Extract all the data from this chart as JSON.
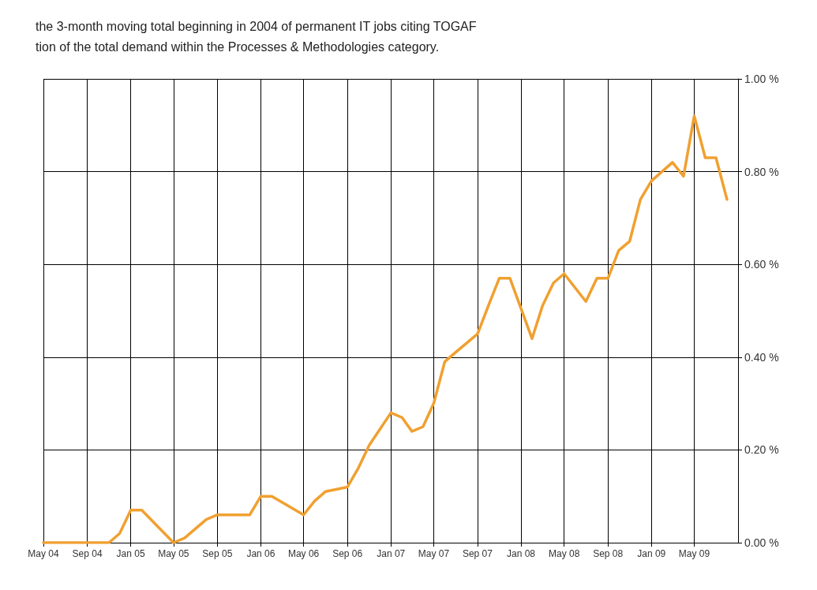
{
  "chart_data": {
    "type": "line",
    "title": "the 3-month moving total beginning in 2004 of permanent IT jobs citing TOGAF",
    "subtitle": "tion of the total demand within the Processes & Methodologies category.",
    "x": [
      "2004-05",
      "2004-09",
      "2004-11",
      "2004-12",
      "2005-01",
      "2005-02",
      "2005-05",
      "2005-06",
      "2005-08",
      "2005-09",
      "2005-12",
      "2006-01",
      "2006-02",
      "2006-05",
      "2006-06",
      "2006-07",
      "2006-09",
      "2006-10",
      "2006-11",
      "2007-01",
      "2007-02",
      "2007-03",
      "2007-04",
      "2007-05",
      "2007-06",
      "2007-07",
      "2007-09",
      "2007-10",
      "2007-11",
      "2007-12",
      "2008-02",
      "2008-03",
      "2008-04",
      "2008-05",
      "2008-07",
      "2008-08",
      "2008-09",
      "2008-10",
      "2008-11",
      "2008-12",
      "2009-01",
      "2009-03",
      "2009-04",
      "2009-05",
      "2009-06",
      "2009-07",
      "2009-08"
    ],
    "series": [
      {
        "color": "#f0a030",
        "values": [
          0.0,
          0.0,
          0.0,
          0.02,
          0.07,
          0.07,
          0.0,
          0.01,
          0.05,
          0.06,
          0.06,
          0.1,
          0.1,
          0.06,
          0.09,
          0.11,
          0.12,
          0.16,
          0.21,
          0.28,
          0.27,
          0.24,
          0.25,
          0.3,
          0.39,
          0.41,
          0.45,
          0.51,
          0.57,
          0.57,
          0.44,
          0.51,
          0.56,
          0.58,
          0.52,
          0.57,
          0.57,
          0.63,
          0.65,
          0.74,
          0.78,
          0.82,
          0.79,
          0.92,
          0.83,
          0.83,
          0.74
        ]
      }
    ],
    "xlim": [
      "2004-05",
      "2009-09"
    ],
    "xticks": [
      {
        "value": "2004-05",
        "label": "May 04"
      },
      {
        "value": "2004-09",
        "label": "Sep 04"
      },
      {
        "value": "2005-01",
        "label": "Jan 05"
      },
      {
        "value": "2005-05",
        "label": "May 05"
      },
      {
        "value": "2005-09",
        "label": "Sep 05"
      },
      {
        "value": "2006-01",
        "label": "Jan 06"
      },
      {
        "value": "2006-05",
        "label": "May 06"
      },
      {
        "value": "2006-09",
        "label": "Sep 06"
      },
      {
        "value": "2007-01",
        "label": "Jan 07"
      },
      {
        "value": "2007-05",
        "label": "May 07"
      },
      {
        "value": "2007-09",
        "label": "Sep 07"
      },
      {
        "value": "2008-01",
        "label": "Jan 08"
      },
      {
        "value": "2008-05",
        "label": "May 08"
      },
      {
        "value": "2008-09",
        "label": "Sep 08"
      },
      {
        "value": "2009-01",
        "label": "Jan 09"
      },
      {
        "value": "2009-05",
        "label": "May 09"
      }
    ],
    "ylim": [
      0,
      1
    ],
    "yticks": [
      {
        "value": 0,
        "label": "0.00 %"
      },
      {
        "value": 0.2,
        "label": "0.20 %"
      },
      {
        "value": 0.4,
        "label": "0.40 %"
      },
      {
        "value": 0.6,
        "label": "0.60 %"
      },
      {
        "value": 0.8,
        "label": "0.80 %"
      },
      {
        "value": 1,
        "label": "1.00 %"
      }
    ],
    "grid": true,
    "marker": "none",
    "line_style": "solid"
  }
}
